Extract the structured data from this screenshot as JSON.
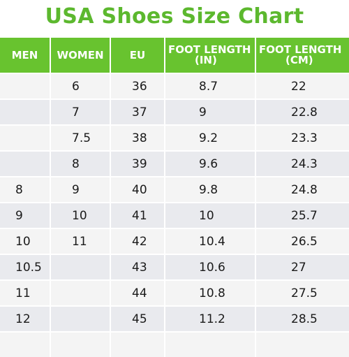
{
  "title": "USA Shoes Size Chart",
  "colors": {
    "title": "#5cb82e",
    "header_bg": "#68c32f",
    "row_light": "#f4f4f4",
    "row_dark": "#e9eaee"
  },
  "headers": {
    "men": "MEN",
    "women": "WOMEN",
    "eu": "EU",
    "foot_length_in": [
      "FOOT LENGTH",
      "(IN)"
    ],
    "foot_length_cm": [
      "FOOT LENGTH",
      "(CM)"
    ]
  },
  "rows": [
    {
      "men": "",
      "women": "6",
      "eu": "36",
      "in": "8.7",
      "cm": "22"
    },
    {
      "men": "",
      "women": "7",
      "eu": "37",
      "in": "9",
      "cm": "22.8"
    },
    {
      "men": "",
      "women": "7.5",
      "eu": "38",
      "in": "9.2",
      "cm": "23.3"
    },
    {
      "men": "",
      "women": "8",
      "eu": "39",
      "in": "9.6",
      "cm": "24.3"
    },
    {
      "men": "8",
      "women": "9",
      "eu": "40",
      "in": "9.8",
      "cm": "24.8"
    },
    {
      "men": "9",
      "women": "10",
      "eu": "41",
      "in": "10",
      "cm": "25.7"
    },
    {
      "men": "10",
      "women": "11",
      "eu": "42",
      "in": "10.4",
      "cm": "26.5"
    },
    {
      "men": "10.5",
      "women": "",
      "eu": "43",
      "in": "10.6",
      "cm": "27"
    },
    {
      "men": "11",
      "women": "",
      "eu": "44",
      "in": "10.8",
      "cm": "27.5"
    },
    {
      "men": "12",
      "women": "",
      "eu": "45",
      "in": "11.2",
      "cm": "28.5"
    },
    {
      "men": "",
      "women": "",
      "eu": "",
      "in": "",
      "cm": ""
    }
  ]
}
